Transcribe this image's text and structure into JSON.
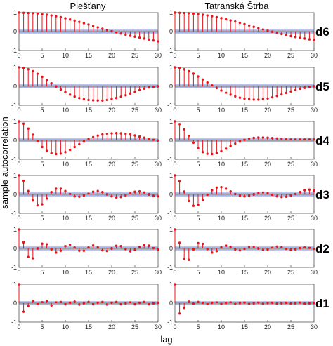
{
  "figure": {
    "columns": [
      "Piešťany",
      "Tatranská Štrba"
    ],
    "row_labels": [
      "d6",
      "d5",
      "d4",
      "d3",
      "d2",
      "d1"
    ],
    "ylabel": "sample autocorrelation",
    "xlabel": "lag"
  },
  "colors": {
    "stem": "#e8151b",
    "conf_band": "#4a67d6",
    "zero_line": "#000000",
    "frame": "#555555"
  },
  "chart_data": [
    {
      "type": "stem",
      "column": "Piešťany",
      "row": "d6",
      "x": [
        0,
        1,
        2,
        3,
        4,
        5,
        6,
        7,
        8,
        9,
        10,
        11,
        12,
        13,
        14,
        15,
        16,
        17,
        18,
        19,
        20,
        21,
        22,
        23,
        24,
        25,
        26,
        27,
        28,
        29,
        30
      ],
      "values": [
        1.0,
        0.99,
        0.98,
        0.97,
        0.95,
        0.92,
        0.89,
        0.85,
        0.81,
        0.76,
        0.7,
        0.64,
        0.58,
        0.51,
        0.44,
        0.37,
        0.29,
        0.22,
        0.15,
        0.08,
        0.02,
        -0.04,
        -0.1,
        -0.16,
        -0.22,
        -0.27,
        -0.32,
        -0.37,
        -0.42,
        -0.47,
        -0.52
      ],
      "conf_band": 0.07,
      "xlim": [
        0,
        30
      ],
      "ylim": [
        -1,
        1
      ],
      "xticks": [
        0,
        5,
        10,
        15,
        20,
        25,
        30
      ],
      "yticks": [
        -1,
        0,
        1
      ]
    },
    {
      "type": "stem",
      "column": "Tatranská Štrba",
      "row": "d6",
      "x": [
        0,
        1,
        2,
        3,
        4,
        5,
        6,
        7,
        8,
        9,
        10,
        11,
        12,
        13,
        14,
        15,
        16,
        17,
        18,
        19,
        20,
        21,
        22,
        23,
        24,
        25,
        26,
        27,
        28,
        29,
        30
      ],
      "values": [
        1.0,
        0.99,
        0.98,
        0.97,
        0.95,
        0.92,
        0.89,
        0.85,
        0.81,
        0.76,
        0.71,
        0.65,
        0.59,
        0.53,
        0.46,
        0.39,
        0.32,
        0.25,
        0.18,
        0.11,
        0.05,
        -0.01,
        -0.07,
        -0.13,
        -0.19,
        -0.24,
        -0.29,
        -0.33,
        -0.37,
        -0.41,
        -0.45
      ],
      "conf_band": 0.07,
      "xlim": [
        0,
        30
      ],
      "ylim": [
        -1,
        1
      ],
      "xticks": [
        0,
        5,
        10,
        15,
        20,
        25,
        30
      ],
      "yticks": [
        -1,
        0,
        1
      ]
    },
    {
      "type": "stem",
      "column": "Piešťany",
      "row": "d5",
      "x": [
        0,
        1,
        2,
        3,
        4,
        5,
        6,
        7,
        8,
        9,
        10,
        11,
        12,
        13,
        14,
        15,
        16,
        17,
        18,
        19,
        20,
        21,
        22,
        23,
        24,
        25,
        26,
        27,
        28,
        29,
        30
      ],
      "values": [
        1.0,
        0.97,
        0.9,
        0.8,
        0.66,
        0.5,
        0.33,
        0.16,
        -0.01,
        -0.17,
        -0.31,
        -0.44,
        -0.54,
        -0.62,
        -0.68,
        -0.72,
        -0.74,
        -0.75,
        -0.75,
        -0.72,
        -0.68,
        -0.62,
        -0.55,
        -0.47,
        -0.38,
        -0.29,
        -0.2,
        -0.12,
        -0.06,
        -0.02,
        0.0
      ],
      "conf_band": 0.07,
      "xlim": [
        0,
        30
      ],
      "ylim": [
        -1,
        1
      ],
      "xticks": [
        0,
        5,
        10,
        15,
        20,
        25,
        30
      ],
      "yticks": [
        -1,
        0,
        1
      ]
    },
    {
      "type": "stem",
      "column": "Tatranská Štrba",
      "row": "d5",
      "x": [
        0,
        1,
        2,
        3,
        4,
        5,
        6,
        7,
        8,
        9,
        10,
        11,
        12,
        13,
        14,
        15,
        16,
        17,
        18,
        19,
        20,
        21,
        22,
        23,
        24,
        25,
        26,
        27,
        28,
        29,
        30
      ],
      "values": [
        1.0,
        0.97,
        0.9,
        0.8,
        0.67,
        0.52,
        0.36,
        0.2,
        0.05,
        -0.09,
        -0.22,
        -0.34,
        -0.44,
        -0.53,
        -0.6,
        -0.65,
        -0.68,
        -0.7,
        -0.7,
        -0.68,
        -0.64,
        -0.58,
        -0.51,
        -0.43,
        -0.35,
        -0.27,
        -0.2,
        -0.13,
        -0.08,
        -0.03,
        0.0
      ],
      "conf_band": 0.07,
      "xlim": [
        0,
        30
      ],
      "ylim": [
        -1,
        1
      ],
      "xticks": [
        0,
        5,
        10,
        15,
        20,
        25,
        30
      ],
      "yticks": [
        -1,
        0,
        1
      ]
    },
    {
      "type": "stem",
      "column": "Piešťany",
      "row": "d4",
      "x": [
        0,
        1,
        2,
        3,
        4,
        5,
        6,
        7,
        8,
        9,
        10,
        11,
        12,
        13,
        14,
        15,
        16,
        17,
        18,
        19,
        20,
        21,
        22,
        23,
        24,
        25,
        26,
        27,
        28,
        29,
        30
      ],
      "values": [
        1.0,
        0.88,
        0.62,
        0.3,
        -0.05,
        -0.35,
        -0.56,
        -0.68,
        -0.72,
        -0.7,
        -0.62,
        -0.5,
        -0.35,
        -0.2,
        -0.06,
        0.07,
        0.17,
        0.25,
        0.31,
        0.35,
        0.37,
        0.38,
        0.37,
        0.35,
        0.31,
        0.26,
        0.2,
        0.14,
        0.08,
        0.03,
        -0.01
      ],
      "conf_band": 0.07,
      "xlim": [
        0,
        30
      ],
      "ylim": [
        -1,
        1
      ],
      "xticks": [
        0,
        5,
        10,
        15,
        20,
        25,
        30
      ],
      "yticks": [
        -1,
        0,
        1
      ]
    },
    {
      "type": "stem",
      "column": "Tatranská Štrba",
      "row": "d4",
      "x": [
        0,
        1,
        2,
        3,
        4,
        5,
        6,
        7,
        8,
        9,
        10,
        11,
        12,
        13,
        14,
        15,
        16,
        17,
        18,
        19,
        20,
        21,
        22,
        23,
        24,
        25,
        26,
        27,
        28,
        29,
        30
      ],
      "values": [
        1.0,
        0.86,
        0.58,
        0.24,
        -0.12,
        -0.42,
        -0.62,
        -0.71,
        -0.72,
        -0.67,
        -0.57,
        -0.44,
        -0.3,
        -0.17,
        -0.06,
        0.03,
        0.09,
        0.13,
        0.15,
        0.15,
        0.14,
        0.12,
        0.1,
        0.08,
        0.06,
        0.05,
        0.05,
        0.05,
        0.05,
        0.05,
        0.05
      ],
      "conf_band": 0.07,
      "xlim": [
        0,
        30
      ],
      "ylim": [
        -1,
        1
      ],
      "xticks": [
        0,
        5,
        10,
        15,
        20,
        25,
        30
      ],
      "yticks": [
        -1,
        0,
        1
      ]
    },
    {
      "type": "stem",
      "column": "Piešťany",
      "row": "d3",
      "x": [
        0,
        1,
        2,
        3,
        4,
        5,
        6,
        7,
        8,
        9,
        10,
        11,
        12,
        13,
        14,
        15,
        16,
        17,
        18,
        19,
        20,
        21,
        22,
        23,
        24,
        25,
        26,
        27,
        28,
        29,
        30
      ],
      "values": [
        1.0,
        0.72,
        0.18,
        -0.32,
        -0.58,
        -0.52,
        -0.22,
        0.12,
        0.3,
        0.3,
        0.18,
        0.02,
        -0.1,
        -0.12,
        -0.06,
        0.04,
        0.14,
        0.18,
        0.12,
        0.0,
        -0.1,
        -0.16,
        -0.14,
        -0.06,
        0.05,
        0.14,
        0.16,
        0.1,
        0.0,
        -0.08,
        -0.1
      ],
      "conf_band": 0.07,
      "xlim": [
        0,
        30
      ],
      "ylim": [
        -1,
        1
      ],
      "xticks": [
        0,
        5,
        10,
        15,
        20,
        25,
        30
      ],
      "yticks": [
        -1,
        0,
        1
      ]
    },
    {
      "type": "stem",
      "column": "Tatranská Štrba",
      "row": "d3",
      "x": [
        0,
        1,
        2,
        3,
        4,
        5,
        6,
        7,
        8,
        9,
        10,
        11,
        12,
        13,
        14,
        15,
        16,
        17,
        18,
        19,
        20,
        21,
        22,
        23,
        24,
        25,
        26,
        27,
        28,
        29,
        30
      ],
      "values": [
        1.0,
        0.7,
        0.15,
        -0.35,
        -0.6,
        -0.55,
        -0.3,
        -0.02,
        0.22,
        0.36,
        0.38,
        0.3,
        0.16,
        0.02,
        -0.07,
        -0.1,
        -0.07,
        0.0,
        0.07,
        0.1,
        0.06,
        -0.02,
        -0.1,
        -0.14,
        -0.12,
        -0.06,
        0.02,
        0.12,
        0.22,
        0.25,
        0.2
      ],
      "conf_band": 0.07,
      "xlim": [
        0,
        30
      ],
      "ylim": [
        -1,
        1
      ],
      "xticks": [
        0,
        5,
        10,
        15,
        20,
        25,
        30
      ],
      "yticks": [
        -1,
        0,
        1
      ]
    },
    {
      "type": "stem",
      "column": "Piešťany",
      "row": "d2",
      "x": [
        0,
        1,
        2,
        3,
        4,
        5,
        6,
        7,
        8,
        9,
        10,
        11,
        12,
        13,
        14,
        15,
        16,
        17,
        18,
        19,
        20,
        21,
        22,
        23,
        24,
        25,
        26,
        27,
        28,
        29,
        30
      ],
      "values": [
        1.0,
        0.32,
        -0.45,
        -0.52,
        0.0,
        0.25,
        0.22,
        -0.05,
        -0.22,
        -0.12,
        0.12,
        0.2,
        0.05,
        -0.12,
        -0.12,
        0.05,
        0.16,
        0.06,
        -0.1,
        -0.14,
        0.0,
        0.14,
        0.12,
        -0.04,
        -0.15,
        -0.08,
        0.08,
        0.18,
        0.15,
        0.02,
        -0.06
      ],
      "conf_band": 0.07,
      "xlim": [
        0,
        30
      ],
      "ylim": [
        -1,
        1
      ],
      "xticks": [
        0,
        5,
        10,
        15,
        20,
        25,
        30
      ],
      "yticks": [
        -1,
        0,
        1
      ]
    },
    {
      "type": "stem",
      "column": "Tatranská Štrba",
      "row": "d2",
      "x": [
        0,
        1,
        2,
        3,
        4,
        5,
        6,
        7,
        8,
        9,
        10,
        11,
        12,
        13,
        14,
        15,
        16,
        17,
        18,
        19,
        20,
        21,
        22,
        23,
        24,
        25,
        26,
        27,
        28,
        29,
        30
      ],
      "values": [
        1.0,
        0.3,
        -0.55,
        -0.6,
        -0.05,
        0.28,
        0.24,
        -0.04,
        -0.22,
        -0.14,
        0.06,
        0.15,
        0.08,
        -0.06,
        -0.1,
        -0.02,
        0.08,
        0.08,
        0.0,
        -0.08,
        -0.06,
        0.04,
        0.1,
        0.06,
        -0.03,
        -0.08,
        -0.05,
        0.02,
        0.05,
        0.03,
        -0.02
      ],
      "conf_band": 0.07,
      "xlim": [
        0,
        30
      ],
      "ylim": [
        -1,
        1
      ],
      "xticks": [
        0,
        5,
        10,
        15,
        20,
        25,
        30
      ],
      "yticks": [
        -1,
        0,
        1
      ]
    },
    {
      "type": "stem",
      "column": "Piešťany",
      "row": "d1",
      "x": [
        0,
        1,
        2,
        3,
        4,
        5,
        6,
        7,
        8,
        9,
        10,
        11,
        12,
        13,
        14,
        15,
        16,
        17,
        18,
        19,
        20,
        21,
        22,
        23,
        24,
        25,
        26,
        27,
        28,
        29,
        30
      ],
      "values": [
        1.0,
        -0.45,
        -0.15,
        0.1,
        -0.05,
        0.05,
        0.1,
        -0.12,
        0.04,
        0.06,
        -0.06,
        0.02,
        0.08,
        -0.08,
        0.0,
        0.06,
        -0.06,
        0.02,
        0.06,
        -0.08,
        0.02,
        0.06,
        -0.06,
        0.0,
        0.04,
        -0.06,
        0.02,
        0.06,
        -0.06,
        0.0,
        0.02
      ],
      "conf_band": 0.07,
      "xlim": [
        0,
        30
      ],
      "ylim": [
        -1,
        1
      ],
      "xticks": [
        0,
        5,
        10,
        15,
        20,
        25,
        30
      ],
      "yticks": [
        -1,
        0,
        1
      ]
    },
    {
      "type": "stem",
      "column": "Tatranská Štrba",
      "row": "d1",
      "x": [
        0,
        1,
        2,
        3,
        4,
        5,
        6,
        7,
        8,
        9,
        10,
        11,
        12,
        13,
        14,
        15,
        16,
        17,
        18,
        19,
        20,
        21,
        22,
        23,
        24,
        25,
        26,
        27,
        28,
        29,
        30
      ],
      "values": [
        1.0,
        -0.55,
        -0.25,
        0.08,
        -0.02,
        0.06,
        0.02,
        -0.04,
        0.02,
        0.04,
        -0.03,
        0.01,
        0.04,
        -0.03,
        0.01,
        0.03,
        -0.03,
        0.0,
        0.03,
        -0.02,
        0.01,
        0.02,
        -0.02,
        0.0,
        0.02,
        -0.02,
        0.0,
        0.03,
        -0.02,
        0.0,
        0.01
      ],
      "conf_band": 0.07,
      "xlim": [
        0,
        30
      ],
      "ylim": [
        -1,
        1
      ],
      "xticks": [
        0,
        5,
        10,
        15,
        20,
        25,
        30
      ],
      "yticks": [
        -1,
        0,
        1
      ]
    }
  ]
}
